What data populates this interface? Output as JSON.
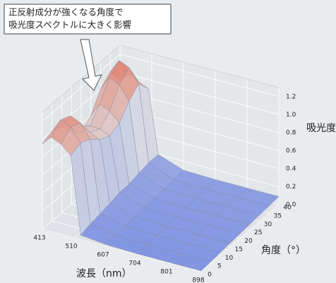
{
  "annotation": [
    "正反射成分が強くなる角度で",
    "吸光度スペクトルに大きく影響"
  ],
  "chart_data": {
    "type": "surface",
    "xlabel": "波長（nm）",
    "ylabel": "角度（°）",
    "zlabel": "吸光度",
    "x": [
      413,
      440,
      470,
      500,
      530,
      607,
      704,
      801,
      898
    ],
    "y": [
      0,
      5,
      10,
      15,
      20,
      25,
      30,
      35,
      40
    ],
    "z": [
      [
        0.95,
        1.05,
        1.0,
        0.9,
        0.05,
        0.02,
        0.01,
        0.01,
        0.01
      ],
      [
        1.0,
        1.15,
        1.1,
        0.95,
        0.08,
        0.03,
        0.02,
        0.02,
        0.02
      ],
      [
        0.95,
        1.1,
        1.05,
        0.9,
        0.1,
        0.04,
        0.03,
        0.03,
        0.03
      ],
      [
        0.8,
        0.9,
        0.85,
        0.8,
        0.12,
        0.05,
        0.04,
        0.04,
        0.04
      ],
      [
        0.7,
        0.8,
        0.8,
        0.75,
        0.15,
        0.06,
        0.05,
        0.05,
        0.05
      ],
      [
        0.8,
        0.95,
        0.9,
        0.8,
        0.15,
        0.07,
        0.06,
        0.06,
        0.06
      ],
      [
        1.0,
        1.15,
        1.1,
        0.95,
        0.18,
        0.08,
        0.07,
        0.07,
        0.07
      ],
      [
        1.1,
        1.25,
        1.2,
        1.05,
        0.2,
        0.09,
        0.08,
        0.08,
        0.08
      ],
      [
        0.9,
        1.0,
        0.95,
        0.9,
        0.2,
        0.1,
        0.09,
        0.09,
        0.09
      ]
    ],
    "colormap": [
      "#6f86e0",
      "#dcdde2",
      "#e2735c"
    ],
    "xlim": [
      413,
      898
    ],
    "xticks": [
      413,
      510,
      607,
      704,
      801,
      898
    ],
    "ylim": [
      0,
      40
    ],
    "yticks": [
      0,
      5,
      10,
      15,
      20,
      25,
      30,
      35,
      40
    ],
    "zlim": [
      0,
      1.3
    ],
    "zticks": [
      {
        "value": 0,
        "label": "0.0"
      },
      0.2,
      0.4,
      0.6,
      0.8,
      {
        "value": 1,
        "label": "1.0"
      },
      1.2
    ],
    "grid": true
  }
}
